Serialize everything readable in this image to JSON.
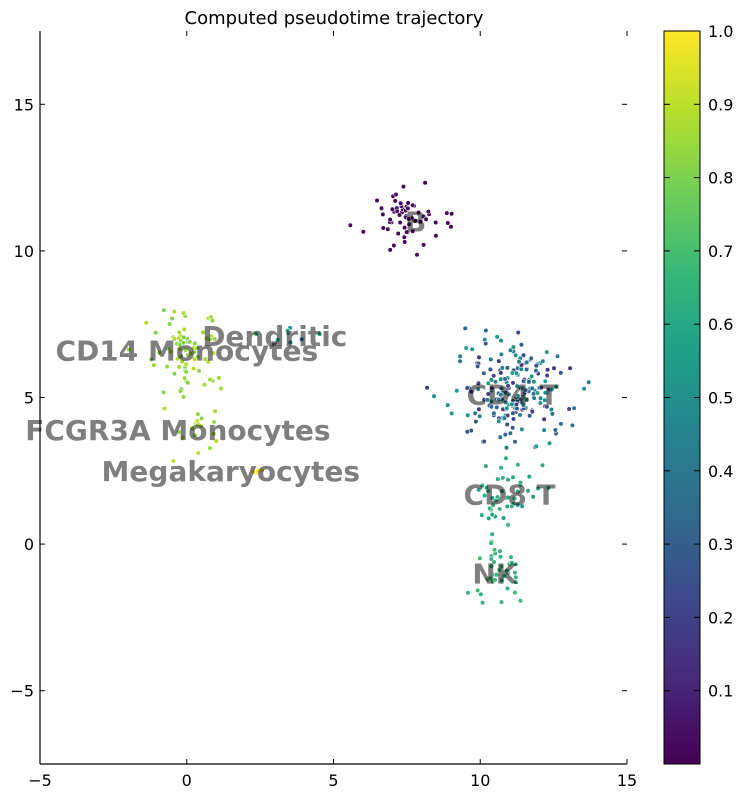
{
  "chart_data": {
    "type": "scatter",
    "title": "Computed pseudotime trajectory",
    "xlabel": "",
    "ylabel": "",
    "xlim": [
      -5,
      15
    ],
    "ylim": [
      -7.5,
      17.5
    ],
    "x_ticks": [
      -5,
      0,
      5,
      10,
      15
    ],
    "y_ticks": [
      -5,
      0,
      5,
      10,
      15
    ],
    "x_tick_labels": [
      "−5",
      "0",
      "5",
      "10",
      "15"
    ],
    "y_tick_labels": [
      "−5",
      "0",
      "5",
      "10",
      "15"
    ],
    "grid": false,
    "colormap": "viridis",
    "colorbar": {
      "range": [
        0,
        1
      ],
      "ticks": [
        0.1,
        0.2,
        0.3,
        0.4,
        0.5,
        0.6,
        0.7,
        0.8,
        0.9,
        1.0
      ],
      "tick_labels": [
        "0.1",
        "0.2",
        "0.3",
        "0.4",
        "0.5",
        "0.6",
        "0.7",
        "0.8",
        "0.9",
        "1.0"
      ]
    },
    "cluster_labels": [
      {
        "text": "B",
        "x": 7.8,
        "y": 11.0
      },
      {
        "text": "Dendritic",
        "x": 3.0,
        "y": 7.1
      },
      {
        "text": "CD14 Monocytes",
        "x": 0.0,
        "y": 6.6
      },
      {
        "text": "CD4 T",
        "x": 11.1,
        "y": 5.1
      },
      {
        "text": "FCGR3A Monocytes",
        "x": -0.3,
        "y": 3.9
      },
      {
        "text": "Megakaryocytes",
        "x": 1.5,
        "y": 2.5
      },
      {
        "text": "CD8 T",
        "x": 11.0,
        "y": 1.7
      },
      {
        "text": "NK",
        "x": 10.5,
        "y": -1.0
      }
    ],
    "clusters": [
      {
        "name": "B",
        "cx": 7.6,
        "cy": 11.1,
        "sx": 0.8,
        "sy": 0.65,
        "n": 60,
        "t": [
          0.0,
          0.05
        ]
      },
      {
        "name": "Dendritic",
        "cx": 3.2,
        "cy": 7.3,
        "sx": 0.9,
        "sy": 0.3,
        "n": 8,
        "t": [
          0.12,
          0.72
        ]
      },
      {
        "name": "CD14 Monocytes",
        "cx": 0.0,
        "cy": 6.6,
        "sx": 0.85,
        "sy": 0.95,
        "n": 75,
        "t": [
          0.8,
          0.9
        ]
      },
      {
        "name": "FCGR3A Monocytes",
        "cx": 0.4,
        "cy": 3.9,
        "sx": 0.6,
        "sy": 0.5,
        "n": 18,
        "t": [
          0.82,
          0.92
        ]
      },
      {
        "name": "Megakaryocytes",
        "cx": 2.4,
        "cy": 2.5,
        "sx": 0.15,
        "sy": 0.2,
        "n": 4,
        "t": [
          0.95,
          1.0
        ]
      },
      {
        "name": "CD4 T",
        "cx": 11.2,
        "cy": 5.2,
        "sx": 1.2,
        "sy": 1.1,
        "n": 210,
        "t": [
          0.15,
          0.58
        ]
      },
      {
        "name": "CD8 T",
        "cx": 10.8,
        "cy": 1.8,
        "sx": 0.8,
        "sy": 0.8,
        "n": 45,
        "t": [
          0.55,
          0.66
        ]
      },
      {
        "name": "NK",
        "cx": 10.6,
        "cy": -0.8,
        "sx": 0.55,
        "sy": 0.75,
        "n": 40,
        "t": [
          0.62,
          0.7
        ]
      }
    ]
  }
}
